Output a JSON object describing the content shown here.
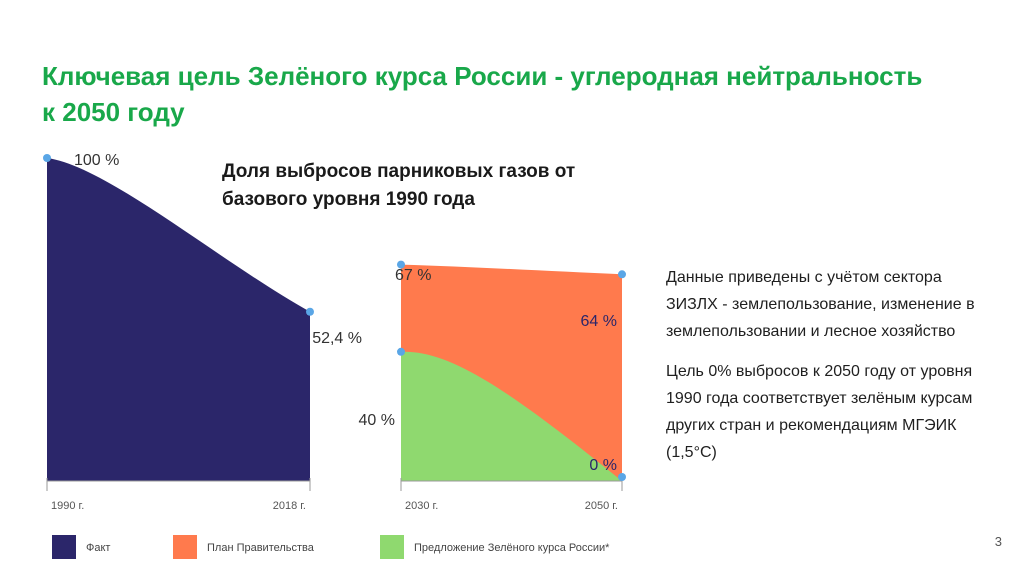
{
  "title": "Ключевая цель Зелёного курса России - углеродная нейтральность к 2050 году",
  "colors": {
    "title": "#19a84a",
    "fact": "#2b266a",
    "government_plan": "#ff7a4d",
    "green_proposal": "#8fd96f",
    "point": "#5aa6e6",
    "axis": "#9a9a9a"
  },
  "chart_data": {
    "type": "area",
    "title": "Доля выбросов парниковых газов от базового уровня 1990 года",
    "ylim": [
      0,
      100
    ],
    "panels": [
      {
        "x": [
          "1990 г.",
          "2018 г."
        ],
        "series": [
          {
            "name": "Факт",
            "values": [
              100,
              52.4
            ],
            "labels": [
              "100 %",
              "52,4 %"
            ]
          }
        ]
      },
      {
        "x": [
          "2030 г.",
          "2050 г."
        ],
        "series": [
          {
            "name": "План Правительства",
            "values": [
              67,
              64
            ],
            "labels": [
              "67 %",
              "64 %"
            ]
          },
          {
            "name": "Предложение Зелёного курса России*",
            "values": [
              40,
              0
            ],
            "labels": [
              "40 %",
              "0 %"
            ]
          }
        ]
      }
    ],
    "legend": [
      "Факт",
      "План Правительства",
      "Предложение Зелёного курса России*"
    ],
    "legend_position": "bottom"
  },
  "notes": [
    "Данные приведены с учётом сектора ЗИЗЛХ - землепользование, изменение в землепользовании и лесное хозяйство",
    "Цель 0% выбросов к 2050 году от уровня 1990 года соответствует зелёным курсам других стран и рекомендациям МГЭИК (1,5°С)"
  ],
  "page_number": "3"
}
